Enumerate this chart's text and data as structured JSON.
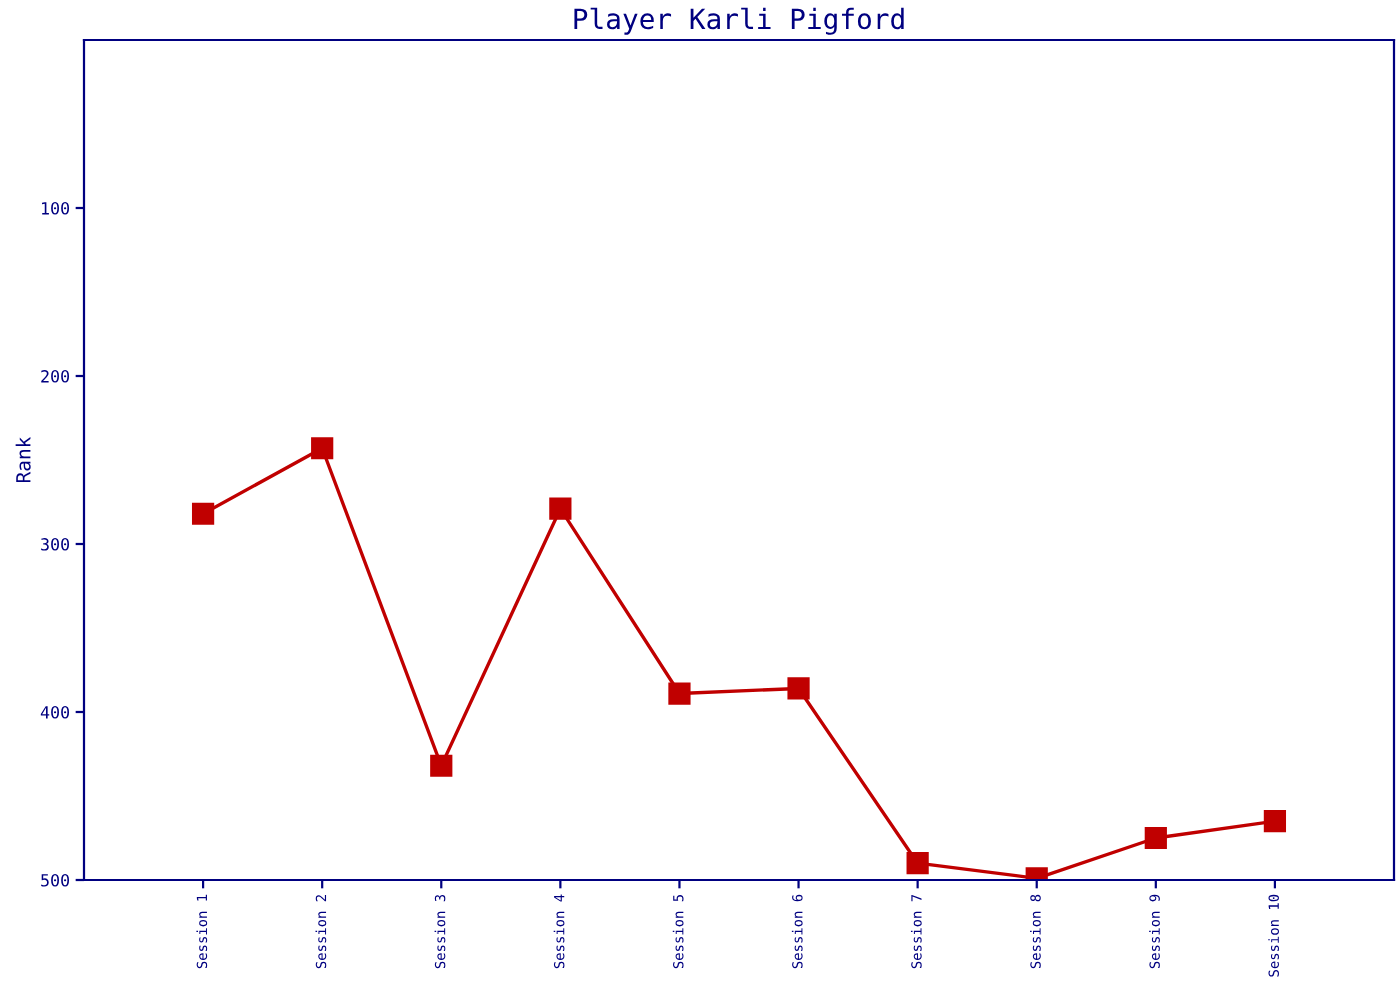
{
  "chart_data": {
    "type": "line",
    "title": "Player Karli Pigford",
    "ylabel": "Rank",
    "categories": [
      "Session 1",
      "Session 2",
      "Session 3",
      "Session 4",
      "Session 5",
      "Session 6",
      "Session 7",
      "Session 8",
      "Session 9",
      "Session 10"
    ],
    "series": [
      {
        "color": "#c00000",
        "values": [
          282,
          243,
          432,
          279,
          389,
          386,
          490,
          499,
          475,
          465
        ]
      }
    ],
    "ylim": [
      500,
      0
    ],
    "yticks": [
      100,
      200,
      300,
      400,
      500
    ],
    "grid": false,
    "legend": false,
    "marker": "square",
    "line_style": "solid"
  }
}
